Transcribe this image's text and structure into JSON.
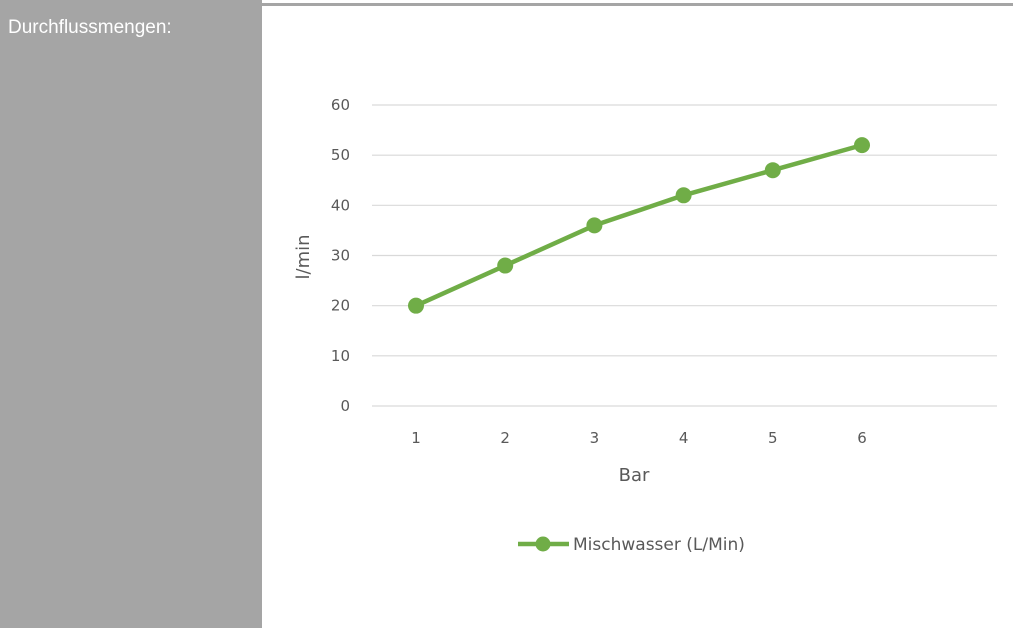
{
  "sidebar": {
    "label": "Durchflussmengen:"
  },
  "colors": {
    "sidebar_bg": "#a5a5a5",
    "series": "#70ad47",
    "grid": "#d9d9d9",
    "text": "#595959"
  },
  "chart_data": {
    "type": "line",
    "title": "",
    "xlabel": "Bar",
    "ylabel": "l/min",
    "categories": [
      "1",
      "2",
      "3",
      "4",
      "5",
      "6"
    ],
    "series": [
      {
        "name": "Mischwasser (L/Min)",
        "values": [
          20,
          28,
          36,
          42,
          47,
          52
        ],
        "color": "#70ad47",
        "marker": "circle"
      }
    ],
    "ylim": [
      0,
      60
    ],
    "yticks": [
      0,
      10,
      20,
      30,
      40,
      50,
      60
    ],
    "grid": true,
    "legend": "bottom"
  }
}
